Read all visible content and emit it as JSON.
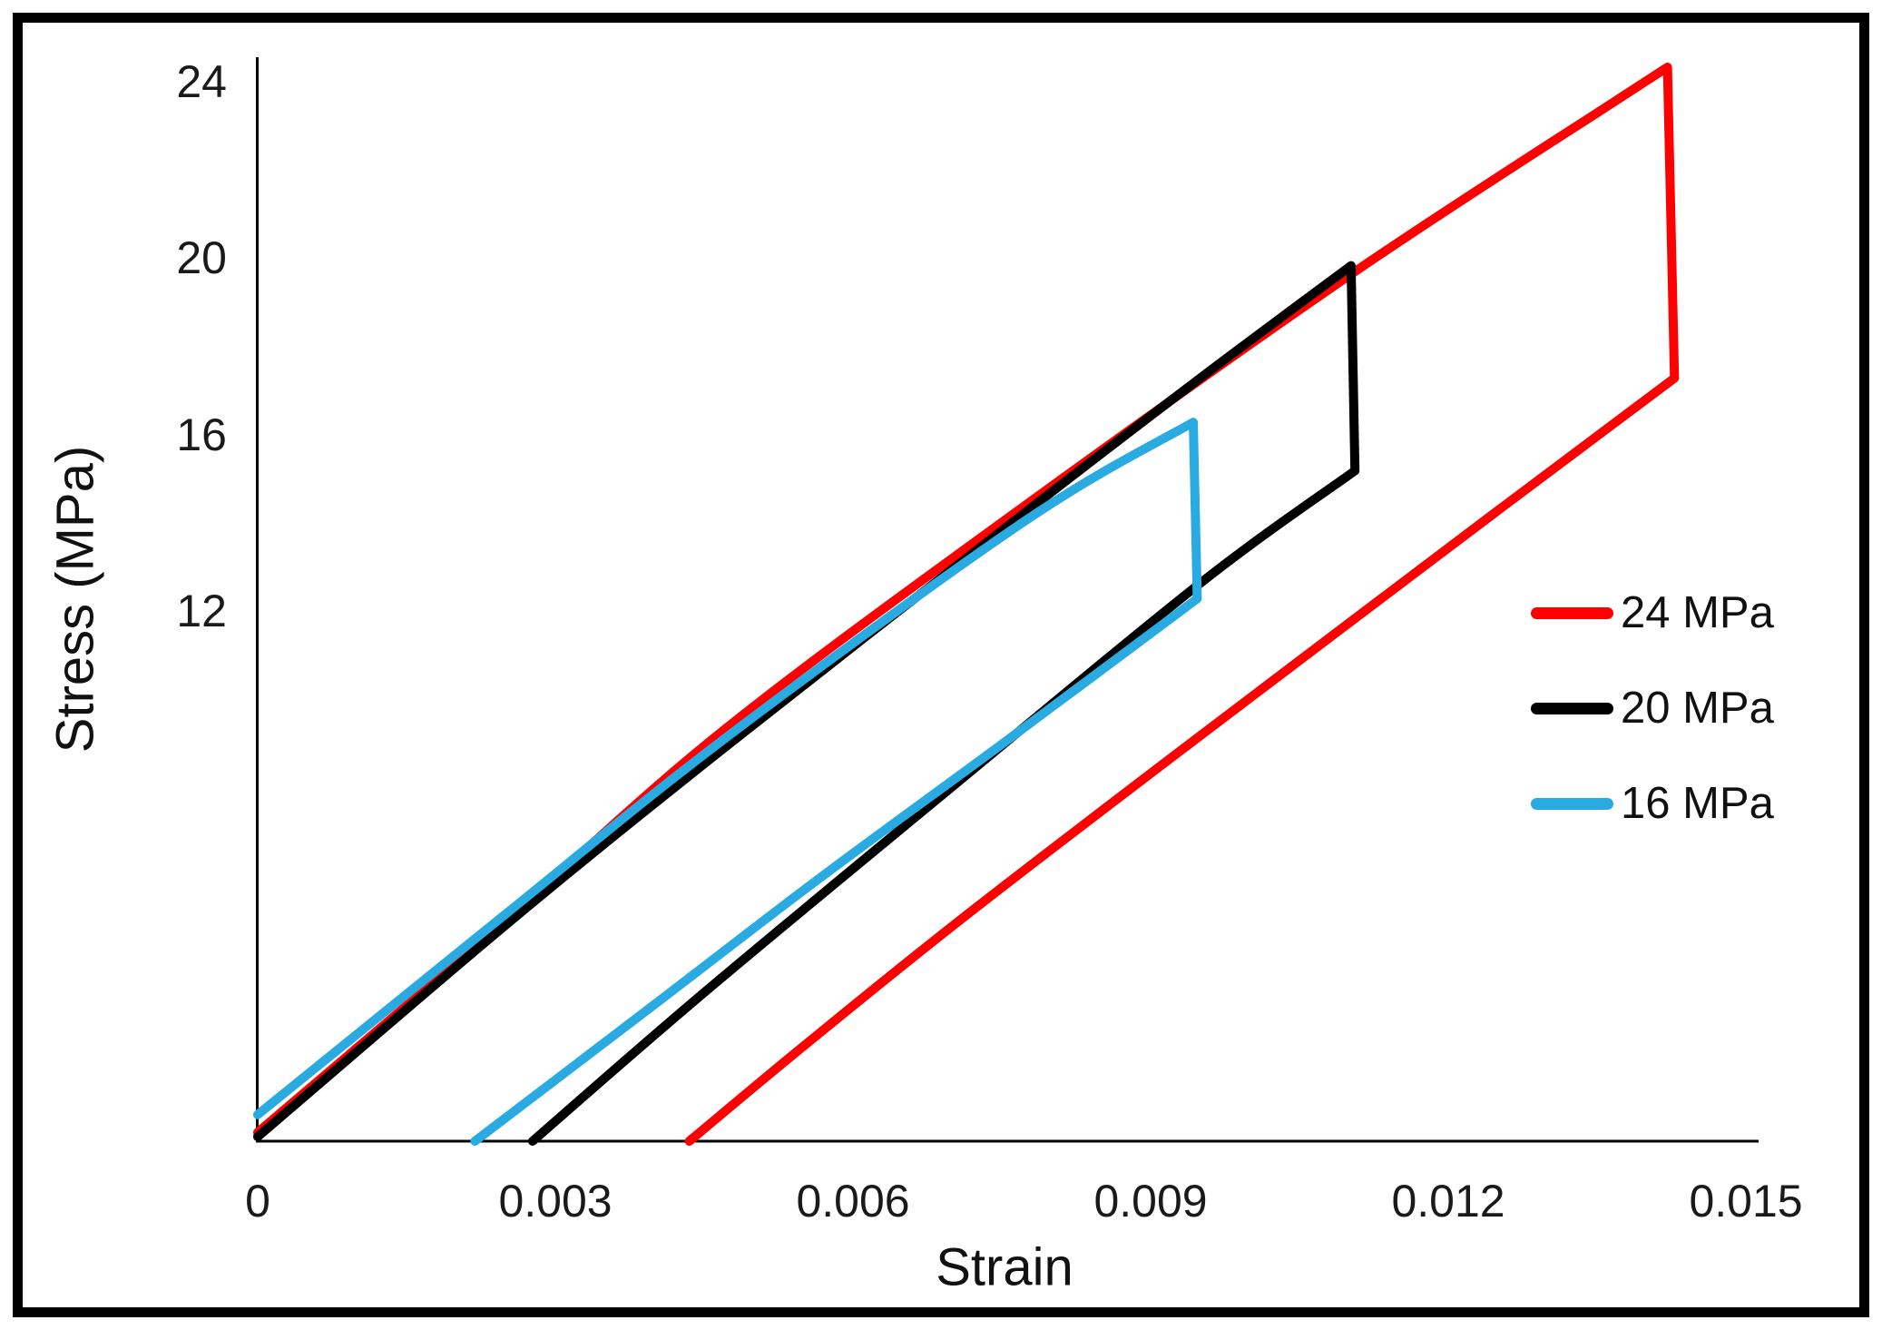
{
  "chart_data": {
    "type": "line",
    "title": "",
    "xlabel": "Strain",
    "ylabel": "Stress (MPa)",
    "xlim": [
      0,
      0.015
    ],
    "ylim": [
      0,
      24.7
    ],
    "grid": false,
    "axis_color": "#000000",
    "x_ticks": {
      "values": [
        0,
        0.003,
        0.006,
        0.009,
        0.012,
        0.015
      ],
      "labels": [
        "0",
        "0.003",
        "0.006",
        "0.009",
        "0.012",
        "0.015"
      ]
    },
    "y_ticks": {
      "values": [
        12,
        16,
        20,
        24
      ],
      "labels": [
        "12",
        "16",
        "20",
        "24"
      ]
    },
    "legend": {
      "position": "right-inside",
      "items": [
        {
          "label": "24 MPa",
          "color": "#FF0000"
        },
        {
          "label": "20 MPa",
          "color": "#000000"
        },
        {
          "label": "16 MPa",
          "color": "#29ABE2"
        }
      ]
    },
    "series": [
      {
        "name": "24 MPa",
        "color": "#FF0000",
        "line_width": 10,
        "peak_strain": 0.0142,
        "peak_stress_mpa": 24.3,
        "unload_drop_stress_mpa": 17.3,
        "residual_strain": 0.00435,
        "loading": [
          [
            0,
            0.2
          ],
          [
            0.0025,
            5.0
          ],
          [
            0.00472,
            9.36
          ],
          [
            0.00774,
            14.42
          ],
          [
            0.01105,
            19.7
          ],
          [
            0.0138,
            23.75
          ],
          [
            0.01421,
            24.35
          ]
        ],
        "drop": [
          [
            0.01428,
            17.3
          ]
        ],
        "unloading": [
          [
            0.01428,
            17.3
          ],
          [
            0.0125,
            14.3
          ],
          [
            0.0093,
            8.85
          ],
          [
            0.0071,
            5.05
          ],
          [
            0.0055,
            2.15
          ],
          [
            0.00435,
            0
          ]
        ]
      },
      {
        "name": "20 MPa",
        "color": "#000000",
        "line_width": 10,
        "peak_strain": 0.011,
        "peak_stress_mpa": 19.9,
        "unload_drop_stress_mpa": 15.2,
        "residual_strain": 0.00277,
        "loading": [
          [
            0,
            0.1
          ],
          [
            0.0025,
            4.9
          ],
          [
            0.00472,
            8.95
          ],
          [
            0.00774,
            14.26
          ],
          [
            0.0095,
            17.3
          ],
          [
            0.01102,
            19.85
          ]
        ],
        "drop": [
          [
            0.01106,
            15.2
          ]
        ],
        "unloading": [
          [
            0.01106,
            15.2
          ],
          [
            0.0095,
            12.65
          ],
          [
            0.0069,
            7.85
          ],
          [
            0.0045,
            3.37
          ],
          [
            0.00277,
            0
          ]
        ]
      },
      {
        "name": "16 MPa",
        "color": "#29ABE2",
        "line_width": 10,
        "peak_strain": 0.0094,
        "peak_stress_mpa": 16.3,
        "unload_drop_stress_mpa": 12.3,
        "residual_strain": 0.00219,
        "loading": [
          [
            0,
            0.6
          ],
          [
            0.0025,
            5.15
          ],
          [
            0.00472,
            9.15
          ],
          [
            0.00774,
            14.07
          ],
          [
            0.00943,
            16.3
          ]
        ],
        "drop": [
          [
            0.00947,
            12.3
          ]
        ],
        "unloading": [
          [
            0.00947,
            12.3
          ],
          [
            0.0075,
            9.0
          ],
          [
            0.00568,
            5.99
          ],
          [
            0.004,
            3.1
          ],
          [
            0.00219,
            0
          ]
        ]
      }
    ]
  }
}
